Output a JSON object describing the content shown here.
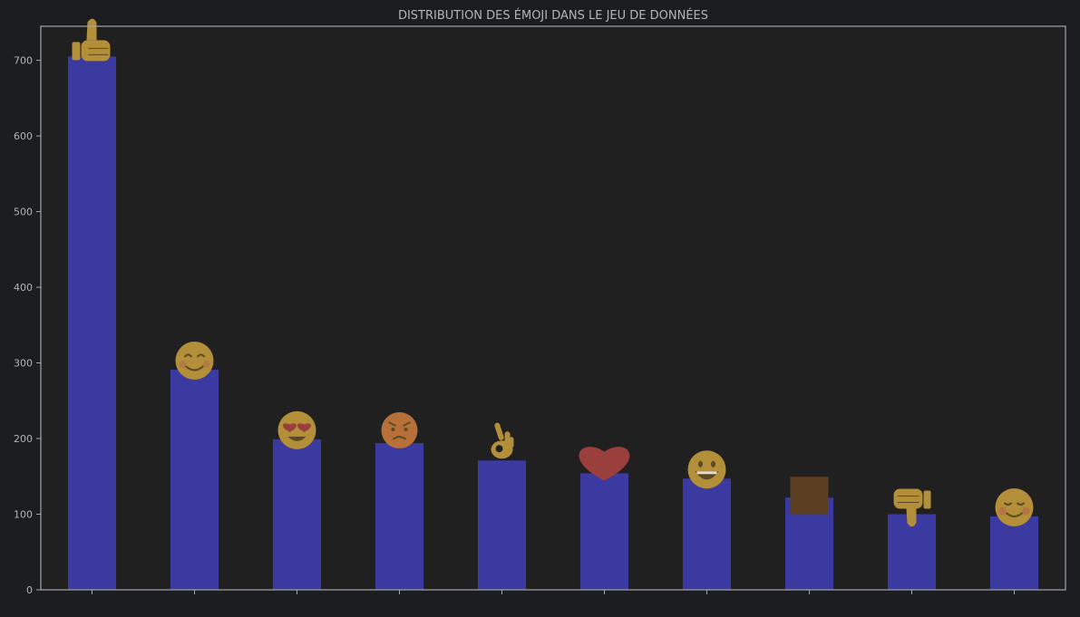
{
  "chart_data": {
    "type": "bar",
    "title": "DISTRIBUTION DES ÉMOJI DANS LE JEU DE DONNÉES",
    "xlabel": "",
    "ylabel": "",
    "ylim": [
      0,
      745
    ],
    "yticks": [
      0,
      100,
      200,
      300,
      400,
      500,
      600,
      700
    ],
    "ytick_labels": [
      "0",
      "100",
      "200",
      "300",
      "400",
      "500",
      "600",
      "700"
    ],
    "grid": false,
    "categories": [
      "thumbs-up",
      "smiling-face",
      "heart-eyes",
      "angry-face",
      "ok-hand",
      "red-heart",
      "grinning-face",
      "brown-square",
      "thumbs-down",
      "blushing-face"
    ],
    "values": [
      705,
      291,
      199,
      194,
      171,
      154,
      147,
      122,
      100,
      97
    ],
    "bar_color": "#3b3aa0",
    "background_color": "#202020",
    "page_color": "#1c1d21",
    "axis_color": "#a6a6a6",
    "text_color": "#b4b4b4",
    "icons": [
      {
        "name": "thumbs-up-icon",
        "color": "#b38f3a"
      },
      {
        "name": "smiling-face-icon",
        "color": "#b38f3a"
      },
      {
        "name": "heart-eyes-icon",
        "color": "#b38f3a"
      },
      {
        "name": "angry-face-icon",
        "color": "#b8703a"
      },
      {
        "name": "ok-hand-icon",
        "color": "#b38f3a"
      },
      {
        "name": "red-heart-icon",
        "color": "#9a3f3c"
      },
      {
        "name": "grinning-face-icon",
        "color": "#b38f3a"
      },
      {
        "name": "brown-square-icon",
        "color": "#5a3f22"
      },
      {
        "name": "thumbs-down-icon",
        "color": "#b38f3a"
      },
      {
        "name": "blushing-face-icon",
        "color": "#b38f3a"
      }
    ]
  }
}
